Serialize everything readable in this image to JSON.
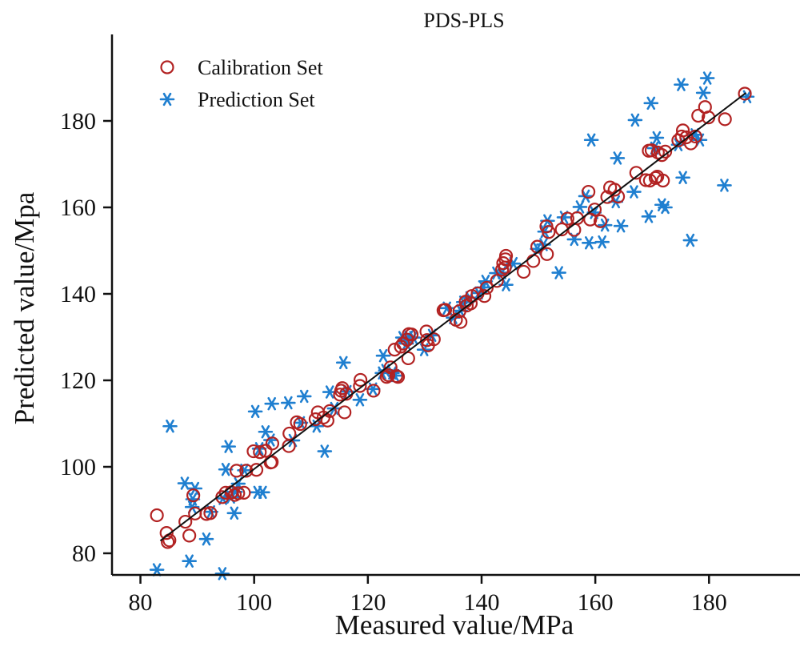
{
  "chart_data": {
    "type": "scatter",
    "title": "PDS-PLS",
    "xlabel": "Measured value/MPa",
    "ylabel": "Predicted value/Mpa",
    "xlim": [
      75,
      196
    ],
    "ylim": [
      75,
      200
    ],
    "xticks": [
      80,
      100,
      120,
      140,
      160,
      180
    ],
    "yticks": [
      80,
      100,
      120,
      140,
      160,
      180
    ],
    "grid": false,
    "legend_position": "top-left",
    "colors": {
      "calibration": "#b22222",
      "prediction": "#1f7fd0",
      "fit_line": "#111111"
    },
    "series": [
      {
        "name": "Calibration Set",
        "marker": "circle",
        "points": [
          [
            82.9,
            88.8
          ],
          [
            84.6,
            84.7
          ],
          [
            84.8,
            82.6
          ],
          [
            85.1,
            83.0
          ],
          [
            87.9,
            87.3
          ],
          [
            88.6,
            84.1
          ],
          [
            89.3,
            93.4
          ],
          [
            89.6,
            89.2
          ],
          [
            91.6,
            89.1
          ],
          [
            92.3,
            89.3
          ],
          [
            94.4,
            93.0
          ],
          [
            95.0,
            94.0
          ],
          [
            96.0,
            94.1
          ],
          [
            96.6,
            93.5
          ],
          [
            96.9,
            99.1
          ],
          [
            97.2,
            93.9
          ],
          [
            98.2,
            94.0
          ],
          [
            98.6,
            99.1
          ],
          [
            99.9,
            103.6
          ],
          [
            100.4,
            99.3
          ],
          [
            101.0,
            103.4
          ],
          [
            102.0,
            103.7
          ],
          [
            102.9,
            101.0
          ],
          [
            103.1,
            101.1
          ],
          [
            103.2,
            105.4
          ],
          [
            106.1,
            104.8
          ],
          [
            106.2,
            107.7
          ],
          [
            107.5,
            110.3
          ],
          [
            108.1,
            109.9
          ],
          [
            110.8,
            111.0
          ],
          [
            111.2,
            112.6
          ],
          [
            112.2,
            111.4
          ],
          [
            112.9,
            110.7
          ],
          [
            113.3,
            112.9
          ],
          [
            115.1,
            116.7
          ],
          [
            115.3,
            117.6
          ],
          [
            115.5,
            118.2
          ],
          [
            115.9,
            112.6
          ],
          [
            116.2,
            116.9
          ],
          [
            118.6,
            118.7
          ],
          [
            118.7,
            120.1
          ],
          [
            121.0,
            117.6
          ],
          [
            123.3,
            120.8
          ],
          [
            123.6,
            121.2
          ],
          [
            124.0,
            123.0
          ],
          [
            124.7,
            127.1
          ],
          [
            125.0,
            121.0
          ],
          [
            125.3,
            120.8
          ],
          [
            125.8,
            127.8
          ],
          [
            126.2,
            128.5
          ],
          [
            126.9,
            129.4
          ],
          [
            127.1,
            125.1
          ],
          [
            127.2,
            130.7
          ],
          [
            127.7,
            130.6
          ],
          [
            130.3,
            131.3
          ],
          [
            130.4,
            129.3
          ],
          [
            130.6,
            128.1
          ],
          [
            131.6,
            129.5
          ],
          [
            133.3,
            136.2
          ],
          [
            133.6,
            136.3
          ],
          [
            135.5,
            134.0
          ],
          [
            136.1,
            136.0
          ],
          [
            136.3,
            133.5
          ],
          [
            137.2,
            138.2
          ],
          [
            137.4,
            137.3
          ],
          [
            138.1,
            137.8
          ],
          [
            138.3,
            139.5
          ],
          [
            139.3,
            140.1
          ],
          [
            140.5,
            139.5
          ],
          [
            140.9,
            141.4
          ],
          [
            142.7,
            143.0
          ],
          [
            143.6,
            145.6
          ],
          [
            143.8,
            147.1
          ],
          [
            144.1,
            146.1
          ],
          [
            144.2,
            148.0
          ],
          [
            144.3,
            148.8
          ],
          [
            147.4,
            145.1
          ],
          [
            149.1,
            147.6
          ],
          [
            149.8,
            150.9
          ],
          [
            151.4,
            155.6
          ],
          [
            151.5,
            149.2
          ],
          [
            151.8,
            154.3
          ],
          [
            154.1,
            154.9
          ],
          [
            155.1,
            157.4
          ],
          [
            156.3,
            154.8
          ],
          [
            156.8,
            157.5
          ],
          [
            158.8,
            163.6
          ],
          [
            159.1,
            157.2
          ],
          [
            159.9,
            159.5
          ],
          [
            160.9,
            156.8
          ],
          [
            162.1,
            162.4
          ],
          [
            162.6,
            164.6
          ],
          [
            163.4,
            164.1
          ],
          [
            164.0,
            162.5
          ],
          [
            167.2,
            168.0
          ],
          [
            168.9,
            166.3
          ],
          [
            169.4,
            173.1
          ],
          [
            169.6,
            166.2
          ],
          [
            169.9,
            173.2
          ],
          [
            170.6,
            166.8
          ],
          [
            170.9,
            167.1
          ],
          [
            171.0,
            172.7
          ],
          [
            171.7,
            172.1
          ],
          [
            171.9,
            166.2
          ],
          [
            172.3,
            172.9
          ],
          [
            174.6,
            175.5
          ],
          [
            175.2,
            176.4
          ],
          [
            175.4,
            177.8
          ],
          [
            176.0,
            176.2
          ],
          [
            176.8,
            174.8
          ],
          [
            177.6,
            176.4
          ],
          [
            178.1,
            181.2
          ],
          [
            179.3,
            183.2
          ],
          [
            179.9,
            180.8
          ],
          [
            182.8,
            180.4
          ],
          [
            186.3,
            186.3
          ]
        ]
      },
      {
        "name": "Prediction Set",
        "marker": "asterisk",
        "points": [
          [
            82.9,
            76.2
          ],
          [
            85.2,
            109.4
          ],
          [
            87.8,
            96.2
          ],
          [
            88.6,
            78.2
          ],
          [
            89.1,
            90.7
          ],
          [
            89.2,
            92.5
          ],
          [
            89.6,
            95.0
          ],
          [
            91.6,
            83.3
          ],
          [
            92.4,
            89.6
          ],
          [
            94.4,
            75.3
          ],
          [
            94.5,
            92.7
          ],
          [
            95.0,
            99.4
          ],
          [
            95.5,
            104.7
          ],
          [
            95.9,
            93.0
          ],
          [
            96.5,
            89.3
          ],
          [
            96.7,
            94.2
          ],
          [
            97.2,
            96.1
          ],
          [
            98.3,
            99.2
          ],
          [
            100.2,
            112.8
          ],
          [
            100.6,
            94.1
          ],
          [
            100.9,
            104.2
          ],
          [
            101.5,
            94.1
          ],
          [
            102.0,
            108.1
          ],
          [
            102.9,
            106.2
          ],
          [
            103.1,
            114.6
          ],
          [
            106.0,
            114.8
          ],
          [
            106.8,
            106.1
          ],
          [
            108.2,
            110.2
          ],
          [
            108.8,
            116.3
          ],
          [
            111.0,
            109.4
          ],
          [
            112.4,
            103.6
          ],
          [
            113.3,
            117.3
          ],
          [
            114.1,
            113.5
          ],
          [
            115.7,
            124.1
          ],
          [
            116.4,
            117.4
          ],
          [
            118.6,
            115.5
          ],
          [
            120.9,
            118.0
          ],
          [
            122.5,
            121.7
          ],
          [
            122.7,
            125.7
          ],
          [
            123.1,
            122.3
          ],
          [
            124.3,
            121.7
          ],
          [
            124.8,
            121.1
          ],
          [
            126.1,
            129.9
          ],
          [
            126.8,
            128.5
          ],
          [
            127.2,
            130.0
          ],
          [
            128.0,
            129.9
          ],
          [
            129.9,
            127.1
          ],
          [
            131.3,
            130.4
          ],
          [
            133.9,
            136.7
          ],
          [
            135.0,
            134.5
          ],
          [
            136.3,
            136.1
          ],
          [
            136.8,
            138.1
          ],
          [
            137.9,
            139.1
          ],
          [
            139.5,
            140.2
          ],
          [
            140.3,
            141.5
          ],
          [
            140.7,
            142.9
          ],
          [
            142.6,
            144.8
          ],
          [
            143.6,
            144.9
          ],
          [
            144.3,
            142.1
          ],
          [
            145.6,
            147.0
          ],
          [
            149.8,
            150.4
          ],
          [
            150.9,
            151.4
          ],
          [
            151.1,
            154.4
          ],
          [
            151.6,
            156.9
          ],
          [
            153.6,
            144.9
          ],
          [
            154.5,
            157.7
          ],
          [
            156.3,
            152.6
          ],
          [
            157.3,
            160.1
          ],
          [
            158.3,
            162.6
          ],
          [
            158.9,
            151.8
          ],
          [
            159.3,
            175.6
          ],
          [
            159.8,
            158.8
          ],
          [
            161.2,
            152.0
          ],
          [
            161.7,
            155.9
          ],
          [
            163.6,
            161.3
          ],
          [
            163.9,
            171.4
          ],
          [
            164.5,
            155.7
          ],
          [
            166.8,
            163.6
          ],
          [
            167.0,
            180.2
          ],
          [
            169.4,
            157.9
          ],
          [
            169.8,
            184.1
          ],
          [
            170.4,
            173.7
          ],
          [
            170.8,
            176.1
          ],
          [
            171.7,
            160.6
          ],
          [
            172.3,
            160.0
          ],
          [
            174.6,
            174.5
          ],
          [
            175.1,
            188.4
          ],
          [
            175.4,
            166.9
          ],
          [
            176.7,
            152.4
          ],
          [
            177.5,
            176.8
          ],
          [
            178.4,
            175.6
          ],
          [
            179.0,
            186.5
          ],
          [
            179.7,
            189.9
          ],
          [
            182.7,
            165.1
          ],
          [
            186.7,
            185.6
          ]
        ]
      },
      {
        "name": "",
        "type": "line",
        "points": [
          [
            83.5,
            82.9
          ],
          [
            186.5,
            186.5
          ]
        ]
      }
    ]
  }
}
